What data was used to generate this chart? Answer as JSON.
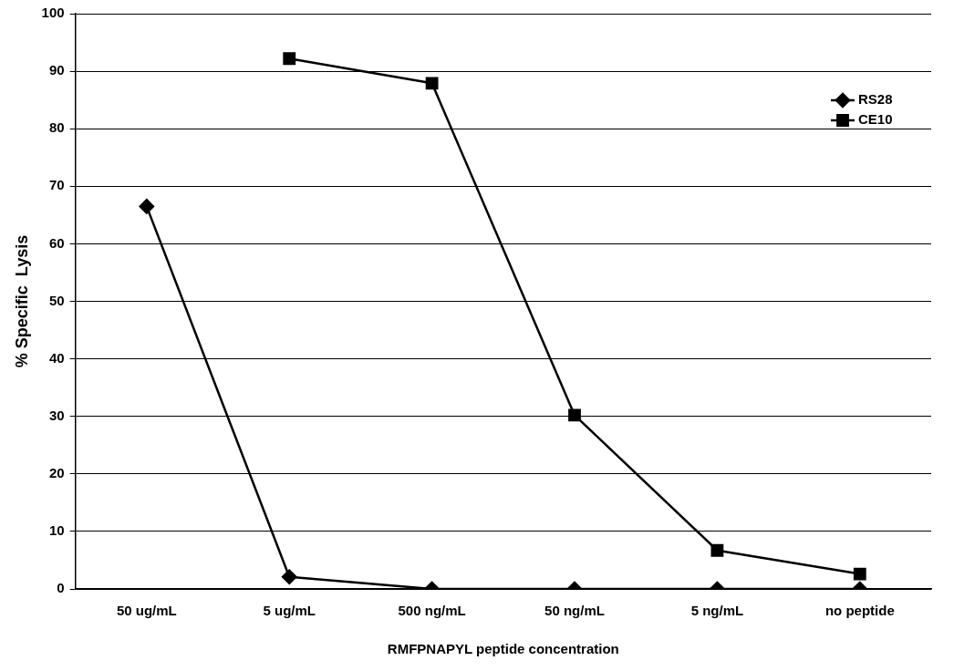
{
  "chart_data": {
    "type": "line",
    "xlabel": "RMFPNAPYL peptide concentration",
    "ylabel": "% Specific  Lysis",
    "categories": [
      "50 ug/mL",
      "5 ug/mL",
      "500 ng/mL",
      "50 ng/mL",
      "5 ng/mL",
      "no peptide"
    ],
    "series": [
      {
        "name": "RS28",
        "color": "#000000",
        "marker": "diamond",
        "values": [
          66.5,
          2.1,
          0,
          0,
          0,
          0
        ]
      },
      {
        "name": "CE10",
        "color": "#000000",
        "marker": "square",
        "values": [
          null,
          92.2,
          87.9,
          30.2,
          6.7,
          2.6
        ]
      }
    ],
    "ylim": [
      0,
      100
    ],
    "yticks": [
      0,
      10,
      20,
      30,
      40,
      50,
      60,
      70,
      80,
      90,
      100
    ],
    "grid": "y",
    "legend": "top right",
    "line_style": "solid"
  }
}
